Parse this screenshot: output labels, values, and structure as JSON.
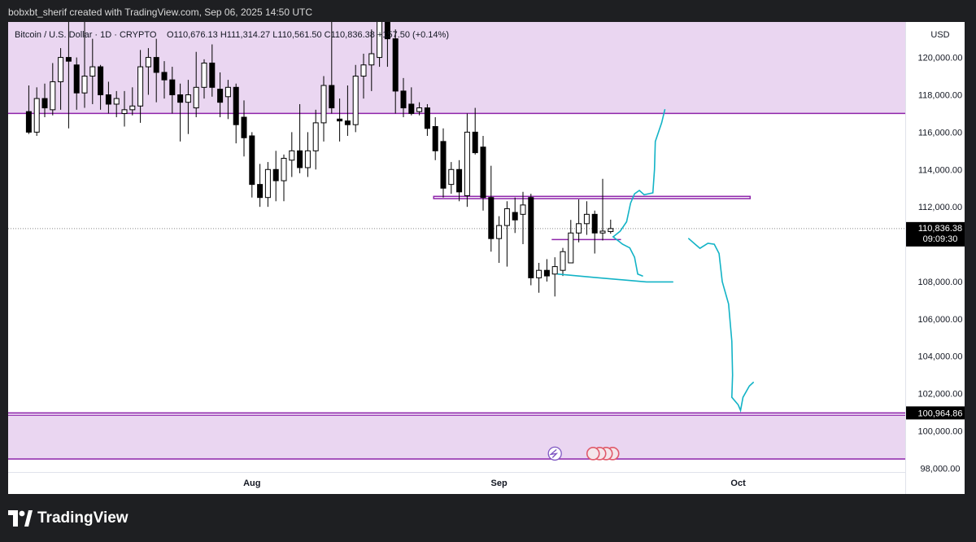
{
  "header": {
    "credit": "bobxbt_sherif created with TradingView.com, Sep 06, 2025 14:50 UTC"
  },
  "footer": {
    "brand": "TradingView"
  },
  "chart_data": {
    "type": "candlestick",
    "symbol_line": "Bitcoin / U.S. Dollar · 1D · CRYPTO",
    "ohlc_line": "O110,676.13 H111,314.27 L110,561.50 C110,836.38 +157.50 (+0.14%)",
    "currency": "USD",
    "y_ticks": [
      "120,000.00",
      "118,000.00",
      "116,000.00",
      "114,000.00",
      "112,000.00",
      "108,000.00",
      "106,000.00",
      "104,000.00",
      "102,000.00",
      "100,000.00",
      "98,000.00"
    ],
    "ylim": [
      97800,
      121900
    ],
    "x_ticks": [
      {
        "label": "Aug",
        "date": "2025-08-01"
      },
      {
        "label": "Sep",
        "date": "2025-09-01"
      },
      {
        "label": "Oct",
        "date": "2025-10-01"
      }
    ],
    "last_price": {
      "label": "110,836.38",
      "countdown": "09:09:30",
      "value": 110836.38
    },
    "level_label": {
      "label": "100,964.86",
      "value": 100964.86
    },
    "colors": {
      "zone": "#ead6f1",
      "level": "#8e24aa",
      "drawing": "#12b3c6",
      "up": "#ffffff",
      "down": "#000000"
    },
    "zones": [
      {
        "from": 117000,
        "to": 121900
      },
      {
        "from": 98500,
        "to": 100965
      }
    ],
    "lines": [
      {
        "price": 117000
      },
      {
        "price": 100965
      },
      {
        "price": 98500
      }
    ],
    "candles": [
      {
        "date": "2025-07-04",
        "o": 117100,
        "h": 118500,
        "l": 115900,
        "c": 116000
      },
      {
        "date": "2025-07-05",
        "o": 116000,
        "h": 118400,
        "l": 115800,
        "c": 117800
      },
      {
        "date": "2025-07-06",
        "o": 117800,
        "h": 118600,
        "l": 116800,
        "c": 117300
      },
      {
        "date": "2025-07-07",
        "o": 117200,
        "h": 119700,
        "l": 116900,
        "c": 118700
      },
      {
        "date": "2025-07-08",
        "o": 118700,
        "h": 120500,
        "l": 117200,
        "c": 120000
      },
      {
        "date": "2025-07-09",
        "o": 120000,
        "h": 123200,
        "l": 116200,
        "c": 119800
      },
      {
        "date": "2025-07-10",
        "o": 119600,
        "h": 120000,
        "l": 117200,
        "c": 118100
      },
      {
        "date": "2025-07-11",
        "o": 118100,
        "h": 122300,
        "l": 117300,
        "c": 119000
      },
      {
        "date": "2025-07-12",
        "o": 119000,
        "h": 121000,
        "l": 117500,
        "c": 119500
      },
      {
        "date": "2025-07-13",
        "o": 119500,
        "h": 119600,
        "l": 117200,
        "c": 118000
      },
      {
        "date": "2025-07-14",
        "o": 118000,
        "h": 118700,
        "l": 117000,
        "c": 117500
      },
      {
        "date": "2025-07-15",
        "o": 117500,
        "h": 118200,
        "l": 116800,
        "c": 117800
      },
      {
        "date": "2025-07-16",
        "o": 117000,
        "h": 118200,
        "l": 116300,
        "c": 117200
      },
      {
        "date": "2025-07-17",
        "o": 117200,
        "h": 118400,
        "l": 116900,
        "c": 117400
      },
      {
        "date": "2025-07-18",
        "o": 117400,
        "h": 120400,
        "l": 116500,
        "c": 119500
      },
      {
        "date": "2025-07-19",
        "o": 119500,
        "h": 120500,
        "l": 118000,
        "c": 120000
      },
      {
        "date": "2025-07-20",
        "o": 120000,
        "h": 121000,
        "l": 117600,
        "c": 119200
      },
      {
        "date": "2025-07-21",
        "o": 119200,
        "h": 119800,
        "l": 117800,
        "c": 118800
      },
      {
        "date": "2025-07-22",
        "o": 118800,
        "h": 119500,
        "l": 117000,
        "c": 118000
      },
      {
        "date": "2025-07-23",
        "o": 118000,
        "h": 118600,
        "l": 115500,
        "c": 117600
      },
      {
        "date": "2025-07-24",
        "o": 117600,
        "h": 118800,
        "l": 115900,
        "c": 118000
      },
      {
        "date": "2025-07-25",
        "o": 117300,
        "h": 120300,
        "l": 116800,
        "c": 118400
      },
      {
        "date": "2025-07-26",
        "o": 118400,
        "h": 119900,
        "l": 117800,
        "c": 119700
      },
      {
        "date": "2025-07-27",
        "o": 119700,
        "h": 120700,
        "l": 117900,
        "c": 118400
      },
      {
        "date": "2025-07-28",
        "o": 118300,
        "h": 119200,
        "l": 116800,
        "c": 117600
      },
      {
        "date": "2025-07-29",
        "o": 117900,
        "h": 118800,
        "l": 116700,
        "c": 118400
      },
      {
        "date": "2025-07-30",
        "o": 118400,
        "h": 118600,
        "l": 115400,
        "c": 116400
      },
      {
        "date": "2025-07-31",
        "o": 116800,
        "h": 117700,
        "l": 114700,
        "c": 115700
      },
      {
        "date": "2025-08-01",
        "o": 115800,
        "h": 116000,
        "l": 112500,
        "c": 113200
      },
      {
        "date": "2025-08-02",
        "o": 113200,
        "h": 114300,
        "l": 112000,
        "c": 112500
      },
      {
        "date": "2025-08-03",
        "o": 112500,
        "h": 114400,
        "l": 112000,
        "c": 114000
      },
      {
        "date": "2025-08-04",
        "o": 114000,
        "h": 115000,
        "l": 112300,
        "c": 113400
      },
      {
        "date": "2025-08-05",
        "o": 113400,
        "h": 114800,
        "l": 112300,
        "c": 114600
      },
      {
        "date": "2025-08-06",
        "o": 114500,
        "h": 116000,
        "l": 113600,
        "c": 115000
      },
      {
        "date": "2025-08-07",
        "o": 115000,
        "h": 117500,
        "l": 113800,
        "c": 114100
      },
      {
        "date": "2025-08-08",
        "o": 114100,
        "h": 116000,
        "l": 113600,
        "c": 115000
      },
      {
        "date": "2025-08-09",
        "o": 115000,
        "h": 117200,
        "l": 114000,
        "c": 116500
      },
      {
        "date": "2025-08-10",
        "o": 116500,
        "h": 119000,
        "l": 115500,
        "c": 118500
      },
      {
        "date": "2025-08-11",
        "o": 118500,
        "h": 122200,
        "l": 117000,
        "c": 117300
      },
      {
        "date": "2025-08-12",
        "o": 116700,
        "h": 117800,
        "l": 115500,
        "c": 116600
      },
      {
        "date": "2025-08-13",
        "o": 116600,
        "h": 118500,
        "l": 115800,
        "c": 116400
      },
      {
        "date": "2025-08-14",
        "o": 116400,
        "h": 119600,
        "l": 116000,
        "c": 119000
      },
      {
        "date": "2025-08-15",
        "o": 119000,
        "h": 120200,
        "l": 117800,
        "c": 119600
      },
      {
        "date": "2025-08-16",
        "o": 119600,
        "h": 121500,
        "l": 118200,
        "c": 120200
      },
      {
        "date": "2025-08-17",
        "o": 120000,
        "h": 124000,
        "l": 119500,
        "c": 123500
      },
      {
        "date": "2025-08-18",
        "o": 123500,
        "h": 124500,
        "l": 119500,
        "c": 121000
      },
      {
        "date": "2025-08-19",
        "o": 121000,
        "h": 121500,
        "l": 117000,
        "c": 118200
      },
      {
        "date": "2025-08-20",
        "o": 118200,
        "h": 118900,
        "l": 116800,
        "c": 117300
      },
      {
        "date": "2025-08-21",
        "o": 117500,
        "h": 118400,
        "l": 116900,
        "c": 117000
      },
      {
        "date": "2025-08-22",
        "o": 117100,
        "h": 117600,
        "l": 116900,
        "c": 117300
      },
      {
        "date": "2025-08-23",
        "o": 117300,
        "h": 117500,
        "l": 115800,
        "c": 116200
      },
      {
        "date": "2025-08-24",
        "o": 116300,
        "h": 116800,
        "l": 114500,
        "c": 115000
      },
      {
        "date": "2025-08-25",
        "o": 115500,
        "h": 116200,
        "l": 112500,
        "c": 113000
      },
      {
        "date": "2025-08-26",
        "o": 113200,
        "h": 114400,
        "l": 112700,
        "c": 114000
      },
      {
        "date": "2025-08-27",
        "o": 114000,
        "h": 114500,
        "l": 112300,
        "c": 112800
      },
      {
        "date": "2025-08-28",
        "o": 112600,
        "h": 117000,
        "l": 112000,
        "c": 116000
      },
      {
        "date": "2025-08-29",
        "o": 116000,
        "h": 117300,
        "l": 114800,
        "c": 114900
      },
      {
        "date": "2025-08-30",
        "o": 115200,
        "h": 115800,
        "l": 111800,
        "c": 112500
      },
      {
        "date": "2025-08-31",
        "o": 112500,
        "h": 114200,
        "l": 109600,
        "c": 110300
      },
      {
        "date": "2025-09-01",
        "o": 110300,
        "h": 111500,
        "l": 109000,
        "c": 111000
      },
      {
        "date": "2025-09-02",
        "o": 111000,
        "h": 112300,
        "l": 108800,
        "c": 111900
      },
      {
        "date": "2025-09-03",
        "o": 111700,
        "h": 112500,
        "l": 110600,
        "c": 111300
      },
      {
        "date": "2025-09-04",
        "o": 111600,
        "h": 112800,
        "l": 110000,
        "c": 112100
      },
      {
        "date": "2025-09-05",
        "o": 112500,
        "h": 112700,
        "l": 107800,
        "c": 108200
      },
      {
        "date": "2025-09-06",
        "o": 108200,
        "h": 109000,
        "l": 107400,
        "c": 108600
      },
      {
        "date": "2025-09-07",
        "o": 108600,
        "h": 109200,
        "l": 108000,
        "c": 108300
      },
      {
        "date": "2025-09-08",
        "o": 108400,
        "h": 109300,
        "l": 107200,
        "c": 108800
      },
      {
        "date": "2025-09-09",
        "o": 108600,
        "h": 109800,
        "l": 108300,
        "c": 109600
      },
      {
        "date": "2025-09-10",
        "o": 109000,
        "h": 111300,
        "l": 109100,
        "c": 110600
      },
      {
        "date": "2025-09-11",
        "o": 110600,
        "h": 112400,
        "l": 110100,
        "c": 111100
      },
      {
        "date": "2025-09-12",
        "o": 111100,
        "h": 112300,
        "l": 110500,
        "c": 111600
      },
      {
        "date": "2025-09-13",
        "o": 111600,
        "h": 111800,
        "l": 109500,
        "c": 110600
      },
      {
        "date": "2025-09-14",
        "o": 110600,
        "h": 113500,
        "l": 110200,
        "c": 110700
      },
      {
        "date": "2025-09-15",
        "o": 110676.13,
        "h": 111314.27,
        "l": 110561.5,
        "c": 110836.38
      }
    ]
  }
}
